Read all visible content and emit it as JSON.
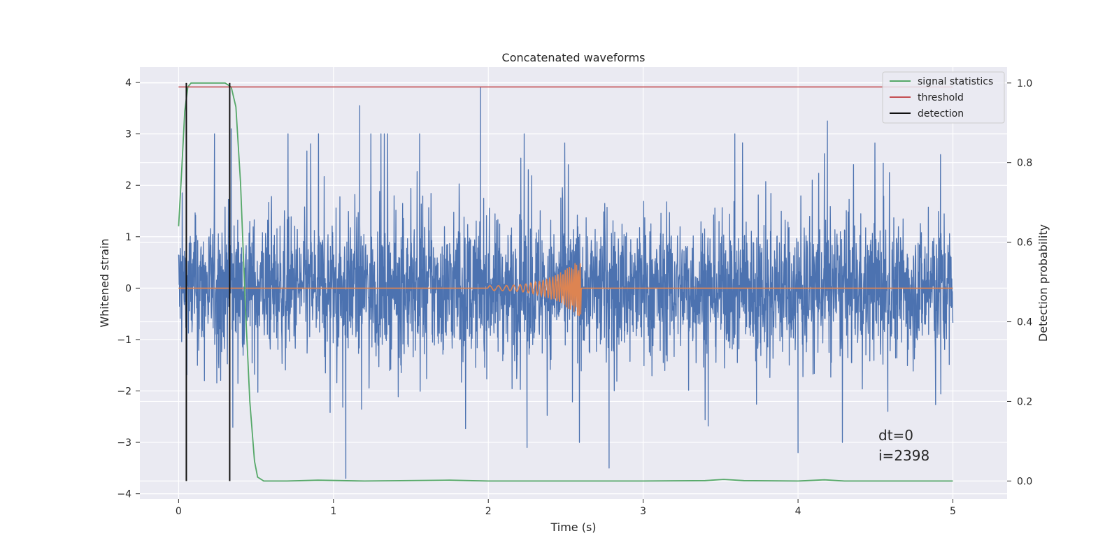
{
  "chart_data": {
    "type": "line",
    "title": "Concatenated waveforms",
    "xlabel": "Time (s)",
    "ylabel": "Whitened strain",
    "ylabel_right": "Detection probability",
    "xlim": [
      -0.25,
      5.35
    ],
    "ylim": [
      -4.1,
      4.3
    ],
    "ylim_right": [
      -0.045,
      1.04
    ],
    "xticks": [
      0,
      1,
      2,
      3,
      4,
      5
    ],
    "yticks": [
      -4,
      -3,
      -2,
      -1,
      0,
      1,
      2,
      3,
      4
    ],
    "yticks_right": [
      0.0,
      0.2,
      0.4,
      0.6,
      0.8,
      1.0
    ],
    "grid": true,
    "legend_position": "top-right",
    "series": [
      {
        "name": "",
        "axis": "left",
        "color": "#4c72b0",
        "kind": "noise",
        "x_range": [
          0,
          5
        ],
        "typical_amplitude": 0.65,
        "peaks": [
          {
            "x": 0.05,
            "y": 2.4
          },
          {
            "x": 0.33,
            "y": 3.2
          },
          {
            "x": 0.34,
            "y": 3.1
          },
          {
            "x": 1.08,
            "y": -3.7
          },
          {
            "x": 1.17,
            "y": 3.55
          },
          {
            "x": 1.95,
            "y": 3.9
          },
          {
            "x": 2.25,
            "y": -3.1
          },
          {
            "x": 2.78,
            "y": -3.5
          },
          {
            "x": 4.0,
            "y": -3.2
          },
          {
            "x": 4.19,
            "y": 3.25
          },
          {
            "x": 4.58,
            "y": -2.4
          },
          {
            "x": 4.92,
            "y": 2.6
          }
        ]
      },
      {
        "name": "",
        "axis": "left",
        "color": "#dd8452",
        "kind": "chirp",
        "x_range": [
          0,
          5
        ],
        "chirp_start": 2.0,
        "chirp_end": 2.6,
        "chirp_peak_amplitude": 0.6
      },
      {
        "name": "signal statistics",
        "axis": "right",
        "color": "#55a868",
        "x": [
          0,
          0.02,
          0.04,
          0.06,
          0.08,
          0.12,
          0.2,
          0.3,
          0.34,
          0.37,
          0.4,
          0.43,
          0.46,
          0.49,
          0.51,
          0.55,
          0.7,
          0.9,
          1.2,
          1.75,
          2.0,
          3.0,
          3.4,
          3.52,
          3.65,
          4.0,
          4.17,
          4.3,
          5.0
        ],
        "y": [
          0.64,
          0.78,
          0.93,
          0.99,
          1.0,
          1.0,
          1.0,
          1.0,
          0.99,
          0.94,
          0.75,
          0.45,
          0.2,
          0.05,
          0.01,
          0.0,
          0.0,
          0.002,
          0.0,
          0.002,
          0.0,
          0.0,
          0.001,
          0.004,
          0.001,
          0.0,
          0.003,
          0.0,
          0.0
        ]
      },
      {
        "name": "threshold",
        "axis": "right",
        "color": "#c44e52",
        "x": [
          0,
          5
        ],
        "y": [
          0.99,
          0.99
        ]
      },
      {
        "name": "detection",
        "axis": "right",
        "color": "#111111",
        "kind": "vlines",
        "x": [
          0.05,
          0.33
        ],
        "y_range": [
          0.0,
          1.0
        ]
      }
    ],
    "annotations": [
      "dt=0",
      "i=2398"
    ]
  }
}
